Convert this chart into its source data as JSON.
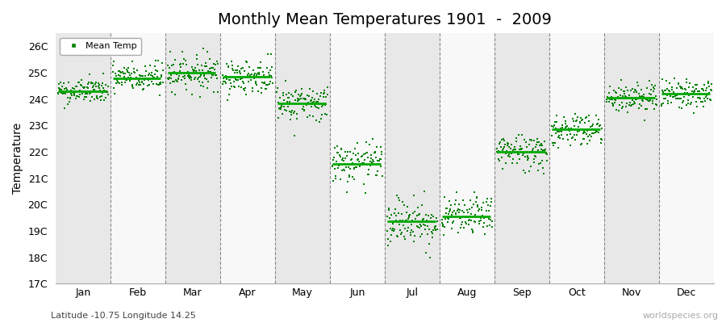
{
  "title": "Monthly Mean Temperatures 1901  -  2009",
  "ylabel": "Temperature",
  "subtitle": "Latitude -10.75 Longitude 14.25",
  "watermark": "worldspecies.org",
  "ylim": [
    17,
    26.5
  ],
  "yticks": [
    17,
    18,
    19,
    20,
    21,
    22,
    23,
    24,
    25,
    26
  ],
  "ytick_labels": [
    "17C",
    "18C",
    "19C",
    "20C",
    "21C",
    "22C",
    "23C",
    "24C",
    "25C",
    "26C"
  ],
  "months": [
    "Jan",
    "Feb",
    "Mar",
    "Apr",
    "May",
    "Jun",
    "Jul",
    "Aug",
    "Sep",
    "Oct",
    "Nov",
    "Dec"
  ],
  "month_means": [
    24.3,
    24.8,
    25.0,
    24.85,
    23.85,
    21.55,
    19.35,
    19.55,
    22.0,
    22.85,
    24.05,
    24.2
  ],
  "month_spreads": [
    0.45,
    0.55,
    0.6,
    0.6,
    0.65,
    0.7,
    0.85,
    0.65,
    0.65,
    0.6,
    0.55,
    0.5
  ],
  "scatter_color": "#008000",
  "mean_line_color": "#00aa00",
  "bg_even_color": "#e8e8e8",
  "bg_odd_color": "#f8f8f8",
  "n_years": 109,
  "legend_label": "Mean Temp",
  "title_fontsize": 14,
  "label_fontsize": 10,
  "tick_fontsize": 9
}
